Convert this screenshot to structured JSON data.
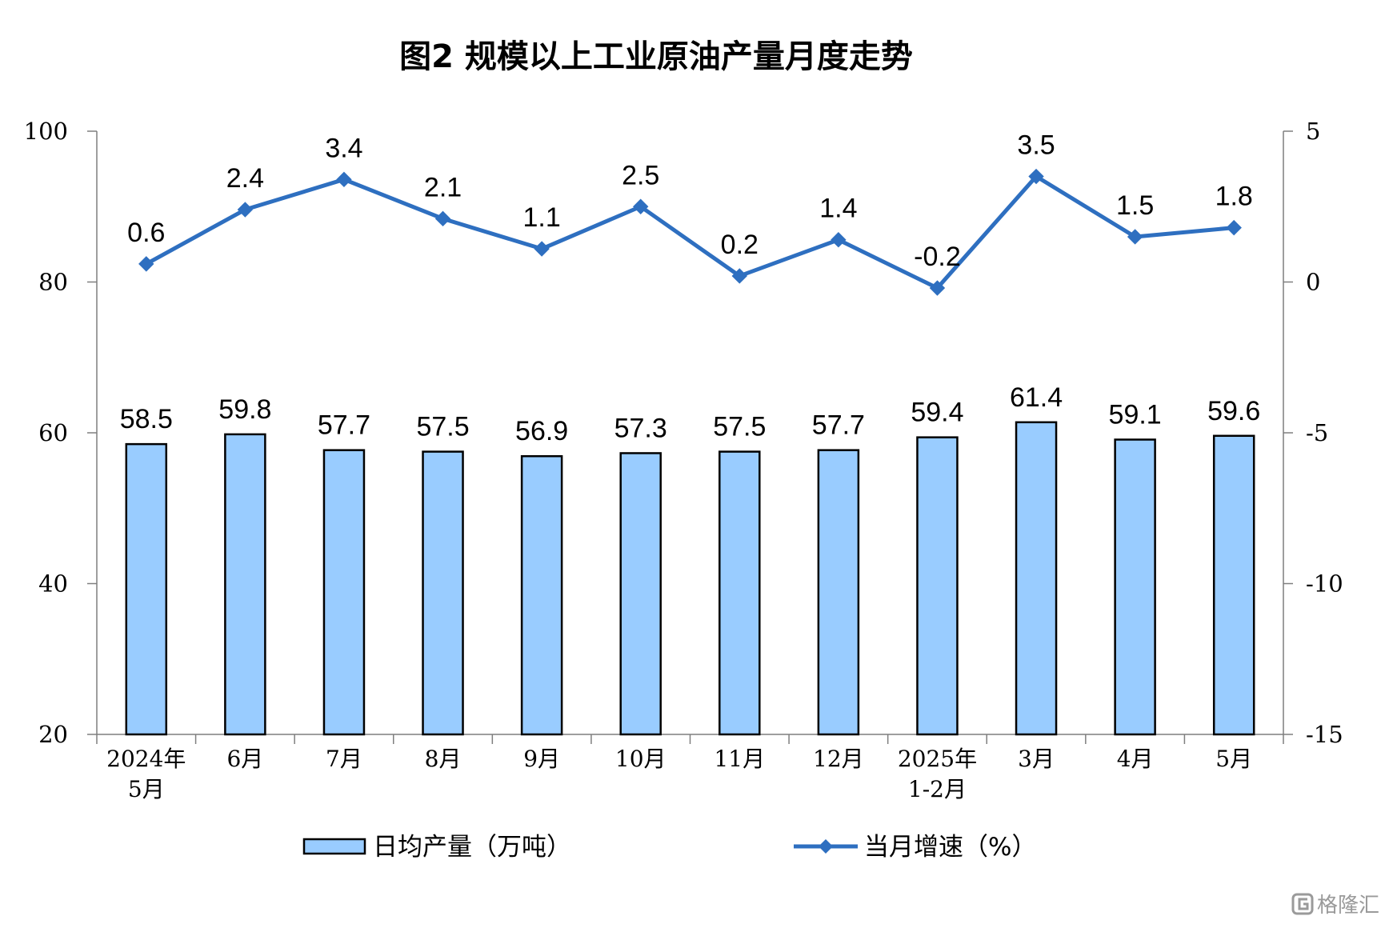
{
  "chart_data": {
    "type": "bar",
    "title": "图2  规模以上工业原油产量月度走势",
    "categories": [
      [
        "2024年",
        "5月"
      ],
      [
        "6月"
      ],
      [
        "7月"
      ],
      [
        "8月"
      ],
      [
        "9月"
      ],
      [
        "10月"
      ],
      [
        "11月"
      ],
      [
        "12月"
      ],
      [
        "2025年",
        "1-2月"
      ],
      [
        "3月"
      ],
      [
        "4月"
      ],
      [
        "5月"
      ]
    ],
    "series": [
      {
        "name": "日均产量（万吨）",
        "type": "bar",
        "axis": "left",
        "color": "#99ccff",
        "values": [
          58.5,
          59.8,
          57.7,
          57.5,
          56.9,
          57.3,
          57.5,
          57.7,
          59.4,
          61.4,
          59.1,
          59.6
        ],
        "labels": [
          "58.5",
          "59.8",
          "57.7",
          "57.5",
          "56.9",
          "57.3",
          "57.5",
          "57.7",
          "59.4",
          "61.4",
          "59.1",
          "59.6"
        ]
      },
      {
        "name": "当月增速（%）",
        "type": "line",
        "axis": "right",
        "color": "#2e6fc0",
        "marker": "diamond",
        "values": [
          0.6,
          2.4,
          3.4,
          2.1,
          1.1,
          2.5,
          0.2,
          1.4,
          -0.2,
          3.5,
          1.5,
          1.8
        ],
        "labels": [
          "0.6",
          "2.4",
          "3.4",
          "2.1",
          "1.1",
          "2.5",
          "0.2",
          "1.4",
          "-0.2",
          "3.5",
          "1.5",
          "1.8"
        ]
      }
    ],
    "y_left": {
      "ylim": [
        20,
        100
      ],
      "ticks": [
        "20",
        "40",
        "60",
        "80",
        "100"
      ]
    },
    "y_right": {
      "ylim": [
        -15,
        5
      ],
      "ticks": [
        "-15",
        "-10",
        "-5",
        "0",
        "5"
      ]
    },
    "legend": {
      "position": "bottom"
    },
    "grid": false
  },
  "watermark": {
    "text": "格隆汇",
    "icon": "gelonghui-logo-icon"
  }
}
